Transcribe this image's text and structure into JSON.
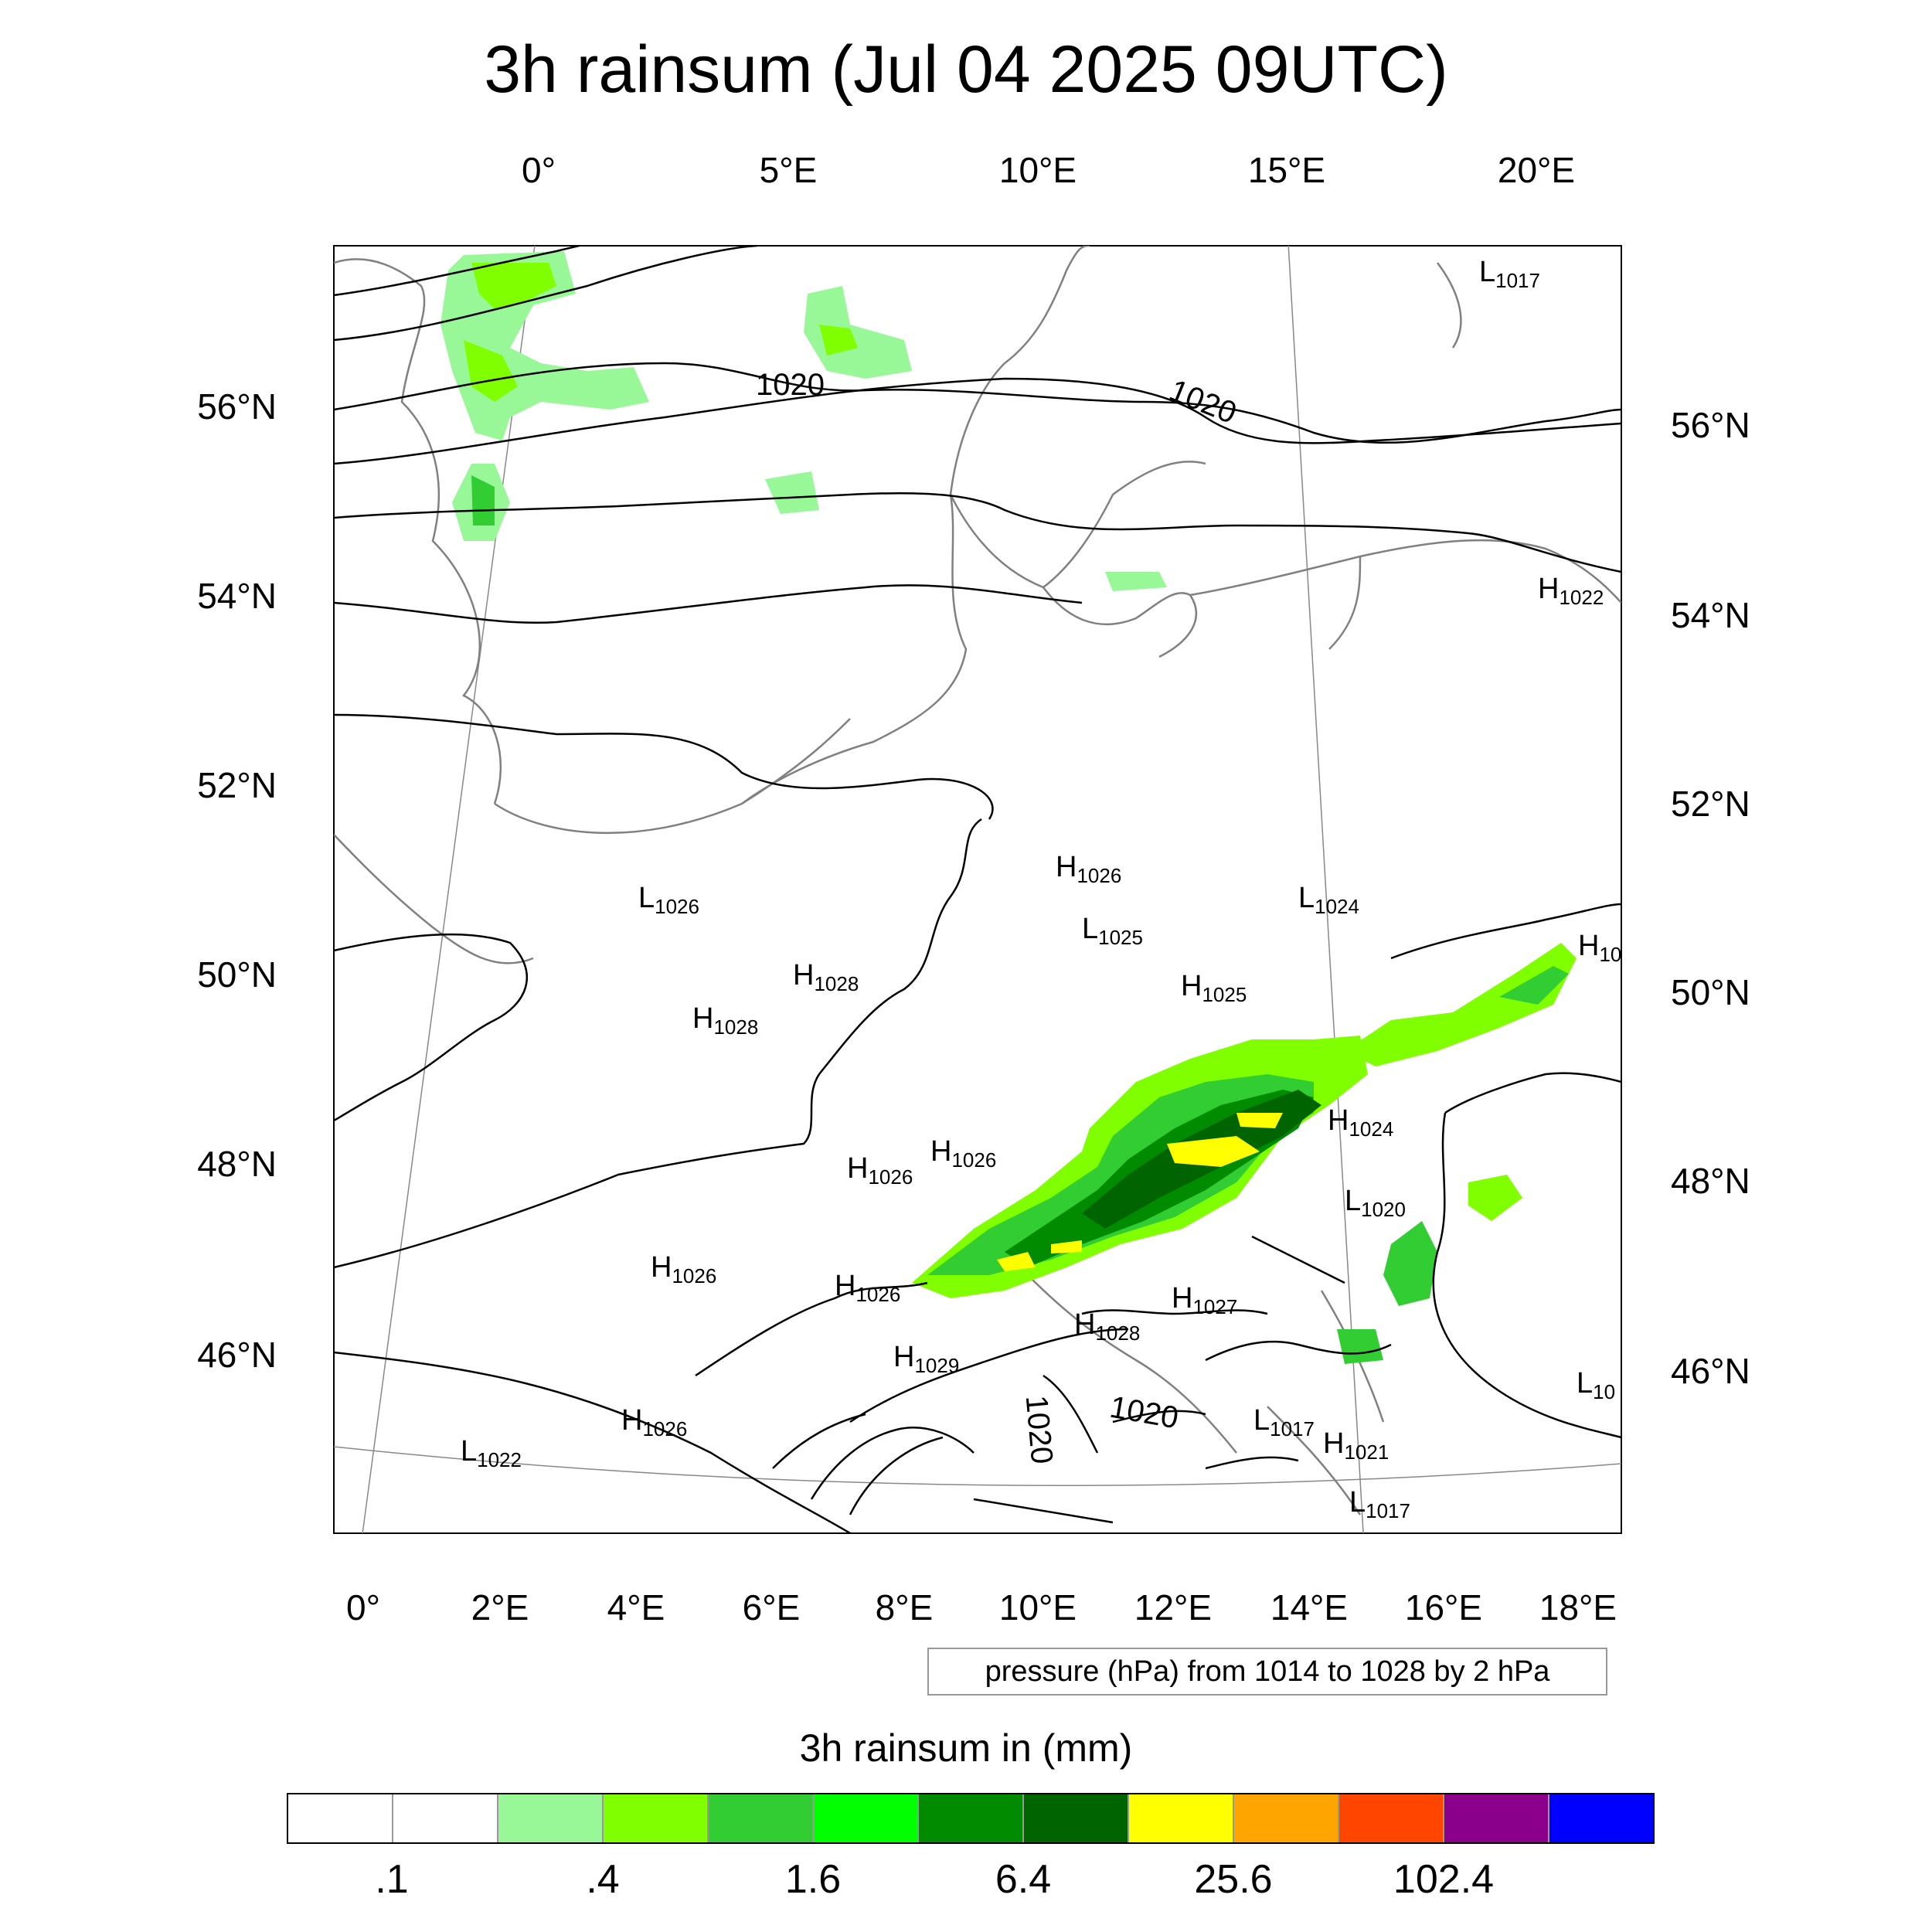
{
  "title": "3h rainsum (Jul 04 2025 09UTC)",
  "top_ticks": [
    "0°",
    "5°E",
    "10°E",
    "15°E",
    "20°E"
  ],
  "bottom_ticks": [
    "0°",
    "2°E",
    "4°E",
    "6°E",
    "8°E",
    "10°E",
    "12°E",
    "14°E",
    "16°E",
    "18°E"
  ],
  "left_ticks": [
    "56°N",
    "54°N",
    "52°N",
    "50°N",
    "48°N",
    "46°N"
  ],
  "right_ticks": [
    "56°N",
    "54°N",
    "52°N",
    "50°N",
    "48°N",
    "46°N"
  ],
  "pressure_legend": "pressure (hPa) from 1014 to 1028 by 2 hPa",
  "contour_labels": [
    "1020",
    "1020",
    "1020",
    "1020"
  ],
  "pressure_centers": [
    {
      "kind": "L",
      "value": "1017"
    },
    {
      "kind": "H",
      "value": "1022"
    },
    {
      "kind": "H",
      "value": "1026"
    },
    {
      "kind": "L",
      "value": "1024"
    },
    {
      "kind": "L",
      "value": "1025"
    },
    {
      "kind": "L",
      "value": "1026"
    },
    {
      "kind": "H",
      "value": "10"
    },
    {
      "kind": "H",
      "value": "1028"
    },
    {
      "kind": "H",
      "value": "1028"
    },
    {
      "kind": "H",
      "value": "1025"
    },
    {
      "kind": "H",
      "value": "1024"
    },
    {
      "kind": "H",
      "value": "1026"
    },
    {
      "kind": "H",
      "value": "1026"
    },
    {
      "kind": "L",
      "value": "1020"
    },
    {
      "kind": "H",
      "value": "1026"
    },
    {
      "kind": "H",
      "value": "1026"
    },
    {
      "kind": "H",
      "value": "1027"
    },
    {
      "kind": "H",
      "value": "1028"
    },
    {
      "kind": "H",
      "value": "1029"
    },
    {
      "kind": "H",
      "value": "1026"
    },
    {
      "kind": "L",
      "value": "1022"
    },
    {
      "kind": "L",
      "value": "1017"
    },
    {
      "kind": "H",
      "value": "1021"
    },
    {
      "kind": "L",
      "value": "1017"
    },
    {
      "kind": "L",
      "value": "10"
    }
  ],
  "colorbar": {
    "title": "3h rainsum in (mm)",
    "colors": [
      "#ffffff",
      "#ffffff",
      "#98f898",
      "#80ff00",
      "#32cd32",
      "#00ff00",
      "#008b00",
      "#006400",
      "#ffff00",
      "#ffa500",
      "#ff4500",
      "#8b008b",
      "#0000ff"
    ],
    "labels": [
      ".1",
      ".4",
      "1.6",
      "6.4",
      "25.6",
      "102.4"
    ]
  }
}
